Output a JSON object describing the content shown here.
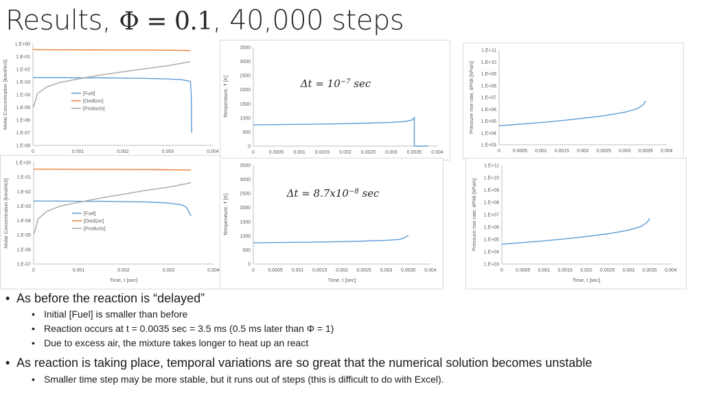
{
  "title": {
    "prefix": "Results, ",
    "math": "Φ = 0.1",
    "suffix": ", 40,000 steps"
  },
  "bullets": {
    "b1": "As before the reaction is “delayed”",
    "b1_subs": [
      "Initial [Fuel] is smaller than before",
      "Reaction occurs at t = 0.0035 sec = 3.5 ms (0.5 ms later than Φ = 1)",
      "Due to excess air, the mixture takes longer to heat up an react"
    ],
    "b2": "As reaction is taking place, temporal variations are so great that the numerical solution becomes unstable",
    "b2_subs": [
      "Smaller time step may be more stable, but it runs out of steps (this is difficult to do with Excel)."
    ]
  },
  "colors": {
    "fuel": "#5B9BD5",
    "oxidizer": "#ED7D31",
    "products": "#A5A5A5",
    "axis": "#bfbfbf",
    "text": "#595959"
  },
  "chart_data": [
    {
      "type": "line",
      "panel": "conc-top",
      "ylabel": "Molar Concentration [kmol/m3]",
      "xlabel": "",
      "yscale": "log",
      "ylim": [
        1e-08,
        1
      ],
      "yticks": [
        "1.E-08",
        "1.E-07",
        "1.E-06",
        "1.E-05",
        "1.E-04",
        "1.E-03",
        "1.E-02",
        "1.E-01",
        "1.E+00"
      ],
      "xlim": [
        0,
        0.004
      ],
      "xticks": [
        "0",
        "0.001",
        "0.002",
        "0.003",
        "0.004"
      ],
      "legend": [
        "[Fuel]",
        "[Oxidizer]",
        "[Products]"
      ],
      "series": [
        {
          "name": "[Fuel]",
          "x": [
            0,
            0.0005,
            0.001,
            0.0015,
            0.002,
            0.0025,
            0.003,
            0.0033,
            0.0035,
            0.00352,
            0.00353
          ],
          "y": [
            0.0022,
            0.0022,
            0.0021,
            0.0021,
            0.002,
            0.0019,
            0.0017,
            0.0015,
            0.0011,
            0.0001,
            1e-07
          ]
        },
        {
          "name": "[Oxidizer]",
          "x": [
            0,
            0.001,
            0.002,
            0.003,
            0.0035
          ],
          "y": [
            0.35,
            0.34,
            0.33,
            0.32,
            0.3
          ]
        },
        {
          "name": "[Products]",
          "x": [
            1e-05,
            0.0001,
            0.0003,
            0.0006,
            0.001,
            0.0015,
            0.002,
            0.0025,
            0.003,
            0.0035
          ],
          "y": [
            1e-05,
            0.00012,
            0.0004,
            0.0009,
            0.0017,
            0.0035,
            0.0063,
            0.011,
            0.019,
            0.04
          ]
        }
      ]
    },
    {
      "type": "line",
      "panel": "temp-top",
      "ylabel": "Temperature, T [K]",
      "xlabel": "",
      "annotation": "Δt = 10^−7 sec",
      "annotation_parts": {
        "pre": "Δt = 10",
        "sup": "−7",
        "post": " sec"
      },
      "ylim": [
        0,
        3500
      ],
      "yticks": [
        "0",
        "500",
        "1000",
        "1500",
        "2000",
        "2500",
        "3000",
        "3500"
      ],
      "xlim": [
        0,
        0.004
      ],
      "xticks": [
        "0",
        "0.0005",
        "0.001",
        "0.0015",
        "0.002",
        "0.0025",
        "0.003",
        "0.0035",
        "0.004"
      ],
      "series": [
        {
          "name": "",
          "x": [
            0,
            0.0005,
            0.001,
            0.0015,
            0.002,
            0.0025,
            0.003,
            0.0033,
            0.00345,
            0.0035,
            0.0035,
            0.0038
          ],
          "y": [
            750,
            760,
            770,
            780,
            795,
            815,
            840,
            870,
            920,
            1010,
            0,
            0
          ]
        }
      ]
    },
    {
      "type": "line",
      "panel": "dpdt-top",
      "ylabel": "Pressure rise rate, dP/dt [kPa/s]",
      "xlabel": "",
      "yscale": "log",
      "ylim": [
        1000,
        100000000000.0
      ],
      "yticks": [
        "1.E+03",
        "1.E+04",
        "1.E+05",
        "1.E+06",
        "1.E+07",
        "1.E+08",
        "1.E+09",
        "1.E+10",
        "1.E+11"
      ],
      "xlim": [
        0,
        0.004
      ],
      "xticks": [
        "0",
        "0.0005",
        "0.001",
        "0.0015",
        "0.002",
        "0.0025",
        "0.003",
        "0.0035",
        "0.004"
      ],
      "series": [
        {
          "name": "",
          "x": [
            0,
            0.0005,
            0.001,
            0.0015,
            0.002,
            0.0025,
            0.003,
            0.0033,
            0.00345,
            0.0035
          ],
          "y": [
            40000,
            55000,
            75000,
            110000,
            170000,
            280000,
            550000,
            1100000,
            2500000,
            5000000
          ]
        }
      ]
    },
    {
      "type": "line",
      "panel": "conc-bottom",
      "ylabel": "Molar Concentration [kmol/m3]",
      "xlabel": "Time, t [sec]",
      "yscale": "log",
      "ylim": [
        1e-07,
        1
      ],
      "yticks": [
        "1.E-07",
        "1.E-06",
        "1.E-05",
        "1.E-04",
        "1.E-03",
        "1.E-02",
        "1.E-01",
        "1.E+00"
      ],
      "xlim": [
        0,
        0.004
      ],
      "xticks": [
        "0",
        "0.001",
        "0.002",
        "0.003",
        "0.004"
      ],
      "legend": [
        "[Fuel]",
        "[Oxidizer]",
        "[Products]"
      ],
      "series": [
        {
          "name": "[Fuel]",
          "x": [
            0,
            0.0005,
            0.001,
            0.0015,
            0.002,
            0.0025,
            0.003,
            0.0033,
            0.0034,
            0.0035
          ],
          "y": [
            0.0022,
            0.0022,
            0.0021,
            0.0021,
            0.002,
            0.0019,
            0.0016,
            0.0012,
            0.0008,
            0.0002
          ]
        },
        {
          "name": "[Oxidizer]",
          "x": [
            0,
            0.001,
            0.002,
            0.003,
            0.0035
          ],
          "y": [
            0.35,
            0.34,
            0.33,
            0.32,
            0.3
          ]
        },
        {
          "name": "[Products]",
          "x": [
            1e-05,
            0.0001,
            0.0003,
            0.0006,
            0.001,
            0.0015,
            0.002,
            0.0025,
            0.003,
            0.0035
          ],
          "y": [
            1.2e-05,
            0.00013,
            0.00045,
            0.001,
            0.0018,
            0.0036,
            0.0065,
            0.012,
            0.02,
            0.04
          ]
        }
      ]
    },
    {
      "type": "line",
      "panel": "temp-bottom",
      "ylabel": "Temperature, T [K]",
      "xlabel": "Time, t [sec]",
      "annotation": "Δt = 8.7x10^−8 sec",
      "annotation_parts": {
        "pre": "Δt = 8.7x10",
        "sup": "−8",
        "post": " sec"
      },
      "ylim": [
        0,
        3500
      ],
      "yticks": [
        "0",
        "500",
        "1000",
        "1500",
        "2000",
        "2500",
        "3000",
        "3500"
      ],
      "xlim": [
        0,
        0.004
      ],
      "xticks": [
        "0",
        "0.0005",
        "0.001",
        "0.0015",
        "0.002",
        "0.0025",
        "0.003",
        "0.0035",
        "0.004"
      ],
      "series": [
        {
          "name": "",
          "x": [
            0,
            0.0005,
            0.001,
            0.0015,
            0.002,
            0.0025,
            0.003,
            0.0033,
            0.0034,
            0.0035
          ],
          "y": [
            750,
            760,
            770,
            780,
            795,
            815,
            840,
            870,
            920,
            1010
          ]
        }
      ]
    },
    {
      "type": "line",
      "panel": "dpdt-bottom",
      "ylabel": "Pressure rise rate, dP/dt [kPa/s]",
      "xlabel": "Time, t [sec]",
      "yscale": "log",
      "ylim": [
        1000,
        100000000000.0
      ],
      "yticks": [
        "1.E+03",
        "1.E+04",
        "1.E+05",
        "1.E+06",
        "1.E+07",
        "1.E+08",
        "1.E+09",
        "1.E+10",
        "1.E+11"
      ],
      "xlim": [
        0,
        0.004
      ],
      "xticks": [
        "0",
        "0.0005",
        "0.001",
        "0.0015",
        "0.002",
        "0.0025",
        "0.003",
        "0.0035",
        "0.004"
      ],
      "series": [
        {
          "name": "",
          "x": [
            0,
            0.0005,
            0.001,
            0.0015,
            0.002,
            0.0025,
            0.003,
            0.0033,
            0.00345,
            0.0035
          ],
          "y": [
            40000,
            55000,
            75000,
            110000,
            170000,
            280000,
            550000,
            1100000,
            2500000,
            5000000
          ]
        }
      ]
    }
  ]
}
